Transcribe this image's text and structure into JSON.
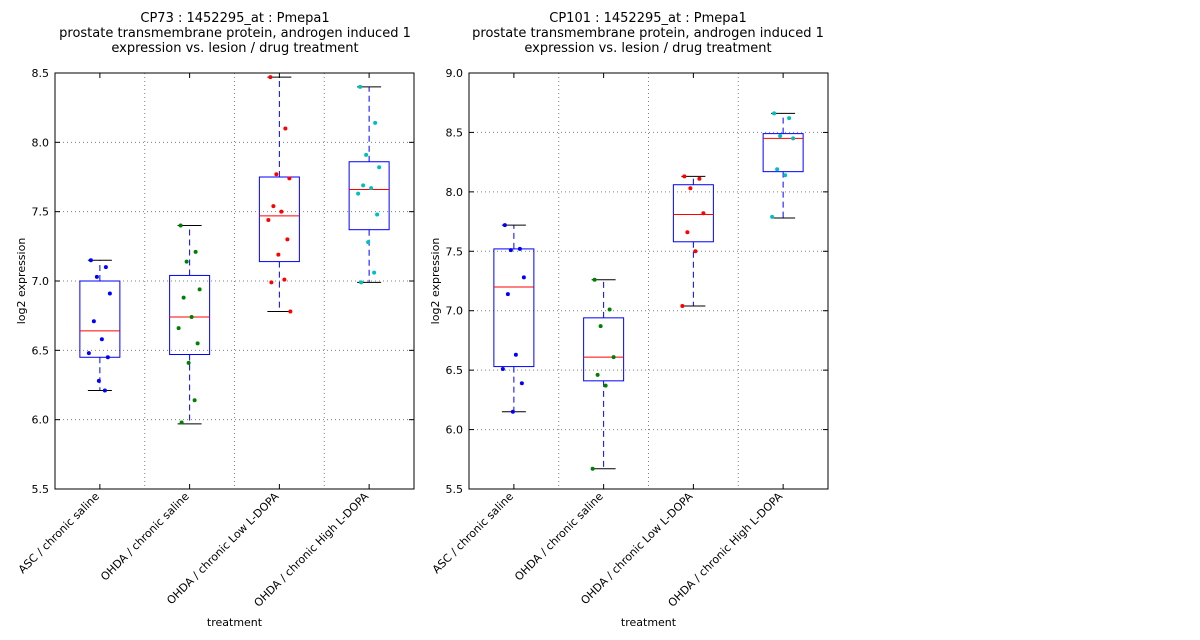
{
  "colors": {
    "box": "#0000ff",
    "median": "#ff0000",
    "grid": "#808080",
    "series": [
      "#0000ff",
      "#008000",
      "#ff0000",
      "#00bfbf"
    ]
  },
  "chart_data": [
    {
      "type": "box",
      "title": [
        "CP73 : 1452295_at : Pmepa1",
        "prostate transmembrane protein, androgen induced 1",
        "expression vs. lesion / drug treatment"
      ],
      "xlabel": "treatment",
      "ylabel": "log2 expression",
      "ylim": [
        5.5,
        8.5
      ],
      "yticks": [
        "5.5",
        "6.0",
        "6.5",
        "7.0",
        "7.5",
        "8.0",
        "8.5"
      ],
      "grid": true,
      "categories": [
        "ASC / chronic saline",
        "OHDA / chronic saline",
        "OHDA / chronic Low L-DOPA",
        "OHDA / chronic High L-DOPA"
      ],
      "boxes": [
        {
          "q1": 6.45,
          "median": 6.64,
          "q3": 7.0,
          "whisker_low": 6.21,
          "whisker_high": 7.15,
          "points": [
            7.15,
            7.1,
            7.03,
            6.91,
            6.71,
            6.58,
            6.48,
            6.45,
            6.28,
            6.21
          ]
        },
        {
          "q1": 6.47,
          "median": 6.74,
          "q3": 7.04,
          "whisker_low": 5.97,
          "whisker_high": 7.4,
          "points": [
            7.4,
            7.21,
            7.14,
            6.94,
            6.88,
            6.74,
            6.66,
            6.55,
            6.41,
            6.14,
            5.98
          ]
        },
        {
          "q1": 7.14,
          "median": 7.47,
          "q3": 7.75,
          "whisker_low": 6.78,
          "whisker_high": 8.47,
          "points": [
            8.47,
            8.1,
            7.77,
            7.74,
            7.54,
            7.5,
            7.44,
            7.3,
            7.19,
            7.01,
            6.99,
            6.78
          ]
        },
        {
          "q1": 7.37,
          "median": 7.66,
          "q3": 7.86,
          "whisker_low": 6.99,
          "whisker_high": 8.4,
          "points": [
            8.4,
            8.14,
            7.91,
            7.82,
            7.69,
            7.67,
            7.63,
            7.48,
            7.28,
            7.06,
            6.99
          ]
        }
      ]
    },
    {
      "type": "box",
      "title": [
        "CP101 : 1452295_at : Pmepa1",
        "prostate transmembrane protein, androgen induced 1",
        "expression vs. lesion / drug treatment"
      ],
      "xlabel": "treatment",
      "ylabel": "log2 expression",
      "ylim": [
        5.5,
        9.0
      ],
      "yticks": [
        "5.5",
        "6.0",
        "6.5",
        "7.0",
        "7.5",
        "8.0",
        "8.5",
        "9.0"
      ],
      "grid": true,
      "categories": [
        "ASC / chronic saline",
        "OHDA / chronic saline",
        "OHDA / chronic Low L-DOPA",
        "OHDA / chronic High L-DOPA"
      ],
      "boxes": [
        {
          "q1": 6.53,
          "median": 7.2,
          "q3": 7.52,
          "whisker_low": 6.15,
          "whisker_high": 7.72,
          "points": [
            7.72,
            7.52,
            7.51,
            7.28,
            7.14,
            6.63,
            6.51,
            6.39,
            6.15
          ]
        },
        {
          "q1": 6.41,
          "median": 6.61,
          "q3": 6.94,
          "whisker_low": 5.67,
          "whisker_high": 7.26,
          "points": [
            7.26,
            7.01,
            6.87,
            6.61,
            6.46,
            6.37,
            5.67
          ]
        },
        {
          "q1": 7.58,
          "median": 7.81,
          "q3": 8.06,
          "whisker_low": 7.04,
          "whisker_high": 8.13,
          "points": [
            8.13,
            8.11,
            8.03,
            7.82,
            7.66,
            7.5,
            7.04
          ]
        },
        {
          "q1": 8.17,
          "median": 8.45,
          "q3": 8.49,
          "whisker_low": 7.78,
          "whisker_high": 8.66,
          "points": [
            8.66,
            8.62,
            8.47,
            8.45,
            8.19,
            8.14,
            7.79
          ]
        }
      ]
    }
  ]
}
